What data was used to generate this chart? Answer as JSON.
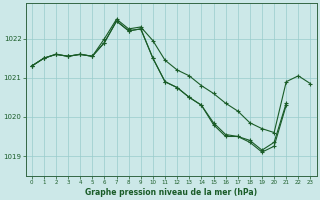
{
  "title": "Graphe pression niveau de la mer (hPa)",
  "background_color": "#cce8e8",
  "grid_color": "#99cccc",
  "line_color": "#1a5c28",
  "xlim": [
    -0.5,
    23.5
  ],
  "ylim": [
    1018.5,
    1022.9
  ],
  "yticks": [
    1019,
    1020,
    1021,
    1022
  ],
  "xticks": [
    0,
    1,
    2,
    3,
    4,
    5,
    6,
    7,
    8,
    9,
    10,
    11,
    12,
    13,
    14,
    15,
    16,
    17,
    18,
    19,
    20,
    21,
    22,
    23
  ],
  "line1": [
    1021.3,
    1021.5,
    1021.6,
    1021.55,
    1021.6,
    1021.55,
    1022.0,
    1022.5,
    1022.25,
    1022.3,
    1021.95,
    1021.45,
    1021.2,
    1021.05,
    1020.8,
    1020.6,
    1020.35,
    1020.15,
    1019.85,
    1019.7,
    1019.6,
    1020.9,
    1021.05,
    1020.85
  ],
  "line2": [
    1021.3,
    1021.5,
    1021.6,
    1021.55,
    1021.6,
    1021.55,
    1021.9,
    1022.45,
    1022.2,
    1022.25,
    1021.5,
    1020.9,
    1020.75,
    1020.5,
    1020.3,
    1019.85,
    1019.55,
    1019.5,
    1019.4,
    1019.15,
    1019.35,
    1020.35,
    null,
    null
  ],
  "line3": [
    1021.3,
    1021.5,
    1021.6,
    1021.55,
    1021.6,
    1021.55,
    1021.9,
    1022.45,
    1022.2,
    1022.25,
    1021.5,
    1020.9,
    1020.75,
    1020.5,
    1020.3,
    1019.8,
    1019.5,
    1019.5,
    1019.35,
    1019.1,
    1019.25,
    1020.3,
    null,
    null
  ]
}
